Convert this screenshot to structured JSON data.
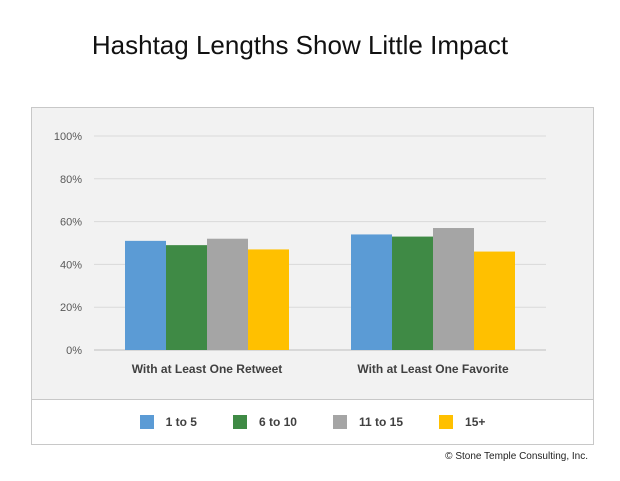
{
  "title": "Hashtag Lengths Show Little Impact",
  "credit": "© Stone Temple Consulting, Inc.",
  "colors": {
    "series": [
      "#5b9bd5",
      "#3f8a45",
      "#a5a5a5",
      "#ffc000"
    ],
    "grid": "#d9d9d9",
    "plot_bg": "#f2f2f2"
  },
  "chart_data": {
    "type": "bar",
    "categories": [
      "With at Least One Retweet",
      "With at Least One Favorite"
    ],
    "series": [
      {
        "name": "1 to 5",
        "values": [
          51,
          54
        ]
      },
      {
        "name": "6 to 10",
        "values": [
          49,
          53
        ]
      },
      {
        "name": "11 to 15",
        "values": [
          52,
          57
        ]
      },
      {
        "name": "15+",
        "values": [
          47,
          46
        ]
      }
    ],
    "y_ticks": [
      "0%",
      "20%",
      "40%",
      "60%",
      "80%",
      "100%"
    ],
    "ylim": [
      0,
      100
    ],
    "grid": true,
    "legend_position": "bottom"
  }
}
